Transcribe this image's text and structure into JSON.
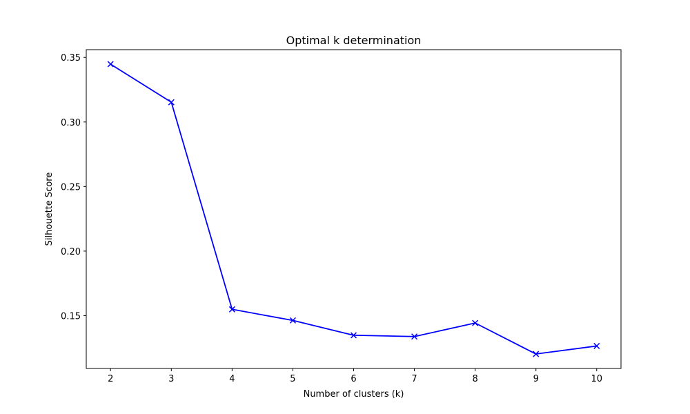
{
  "chart_data": {
    "type": "line",
    "title": "Optimal k determination",
    "xlabel": "Number of clusters (k)",
    "ylabel": "Silhouette Score",
    "x": [
      2,
      3,
      4,
      5,
      6,
      7,
      8,
      9,
      10
    ],
    "series": [
      {
        "values": [
          0.3448,
          0.3153,
          0.1549,
          0.1463,
          0.1348,
          0.1338,
          0.1443,
          0.1203,
          0.1265
        ],
        "color": "#0000ff",
        "marker": "x"
      }
    ],
    "xlim": [
      1.6,
      10.4
    ],
    "ylim": [
      0.1091,
      0.356
    ],
    "xticks": [
      2,
      3,
      4,
      5,
      6,
      7,
      8,
      9,
      10
    ],
    "yticks": [
      0.15,
      0.2,
      0.25,
      0.3,
      0.35
    ],
    "ytick_labels": [
      "0.15",
      "0.20",
      "0.25",
      "0.30",
      "0.35"
    ],
    "grid": false,
    "legend": "none"
  }
}
